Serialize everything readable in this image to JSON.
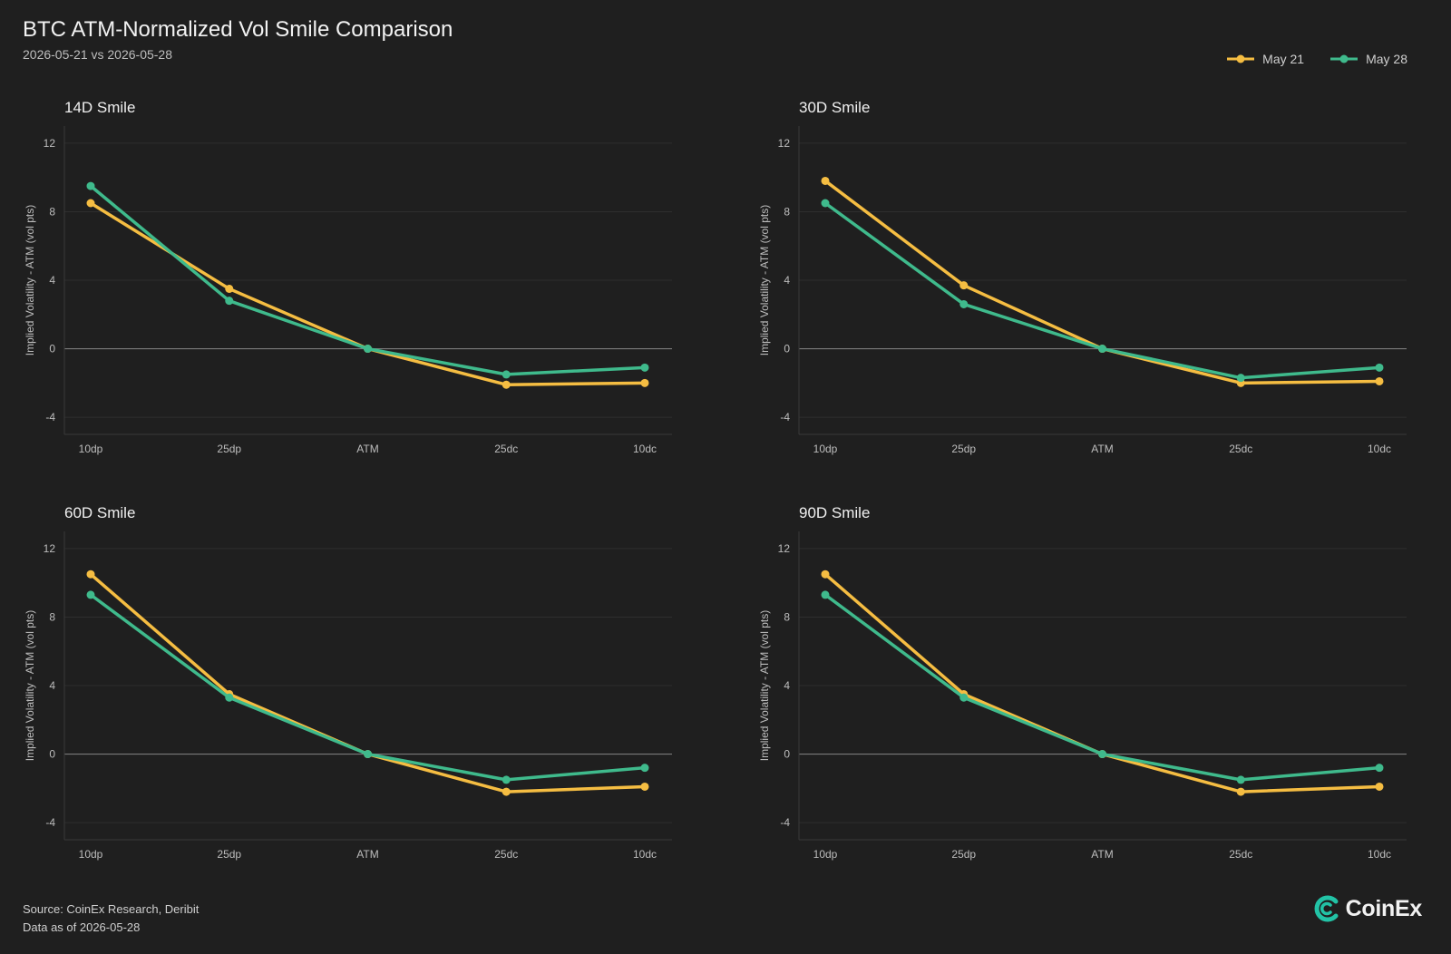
{
  "header": {
    "title": "BTC ATM-Normalized Vol Smile Comparison",
    "subtitle": "2026-05-21 vs 2026-05-28"
  },
  "legend": [
    {
      "label": "May 21",
      "color": "#f5bd42"
    },
    {
      "label": "May 28",
      "color": "#3fba8c"
    }
  ],
  "chart_data": [
    {
      "type": "line",
      "title": "14D Smile",
      "xlabel": "",
      "ylabel": "Implied Volatility - ATM (vol pts)",
      "categories": [
        "10dp",
        "25dp",
        "ATM",
        "25dc",
        "10dc"
      ],
      "yticks": [
        12,
        8,
        4,
        0,
        -4
      ],
      "ylim": [
        -5,
        13
      ],
      "grid": true,
      "series": [
        {
          "name": "May 21",
          "color": "#f5bd42",
          "values": [
            8.5,
            3.5,
            0,
            -2.1,
            -2.0
          ]
        },
        {
          "name": "May 28",
          "color": "#3fba8c",
          "values": [
            9.5,
            2.8,
            0,
            -1.5,
            -1.1
          ]
        }
      ]
    },
    {
      "type": "line",
      "title": "30D Smile",
      "xlabel": "",
      "ylabel": "Implied Volatility - ATM (vol pts)",
      "categories": [
        "10dp",
        "25dp",
        "ATM",
        "25dc",
        "10dc"
      ],
      "yticks": [
        12,
        8,
        4,
        0,
        -4
      ],
      "ylim": [
        -5,
        13
      ],
      "grid": true,
      "series": [
        {
          "name": "May 21",
          "color": "#f5bd42",
          "values": [
            9.8,
            3.7,
            0,
            -2.0,
            -1.9
          ]
        },
        {
          "name": "May 28",
          "color": "#3fba8c",
          "values": [
            8.5,
            2.6,
            0,
            -1.7,
            -1.1
          ]
        }
      ]
    },
    {
      "type": "line",
      "title": "60D Smile",
      "xlabel": "",
      "ylabel": "Implied Volatility - ATM (vol pts)",
      "categories": [
        "10dp",
        "25dp",
        "ATM",
        "25dc",
        "10dc"
      ],
      "yticks": [
        12,
        8,
        4,
        0,
        -4
      ],
      "ylim": [
        -5,
        13
      ],
      "grid": true,
      "series": [
        {
          "name": "May 21",
          "color": "#f5bd42",
          "values": [
            10.5,
            3.5,
            0,
            -2.2,
            -1.9
          ]
        },
        {
          "name": "May 28",
          "color": "#3fba8c",
          "values": [
            9.3,
            3.3,
            0,
            -1.5,
            -0.8
          ]
        }
      ]
    },
    {
      "type": "line",
      "title": "90D Smile",
      "xlabel": "",
      "ylabel": "Implied Volatility - ATM (vol pts)",
      "categories": [
        "10dp",
        "25dp",
        "ATM",
        "25dc",
        "10dc"
      ],
      "yticks": [
        12,
        8,
        4,
        0,
        -4
      ],
      "ylim": [
        -5,
        13
      ],
      "grid": true,
      "series": [
        {
          "name": "May 21",
          "color": "#f5bd42",
          "values": [
            10.5,
            3.5,
            0,
            -2.2,
            -1.9
          ]
        },
        {
          "name": "May 28",
          "color": "#3fba8c",
          "values": [
            9.3,
            3.3,
            0,
            -1.5,
            -0.8
          ]
        }
      ]
    }
  ],
  "footer": {
    "source": "Source: CoinEx Research, Deribit",
    "asof": "Data as of 2026-05-28"
  },
  "brand": {
    "name": "CoinEx",
    "logo_icon": "coinex-logo-icon",
    "accent": "#22c3a6"
  }
}
